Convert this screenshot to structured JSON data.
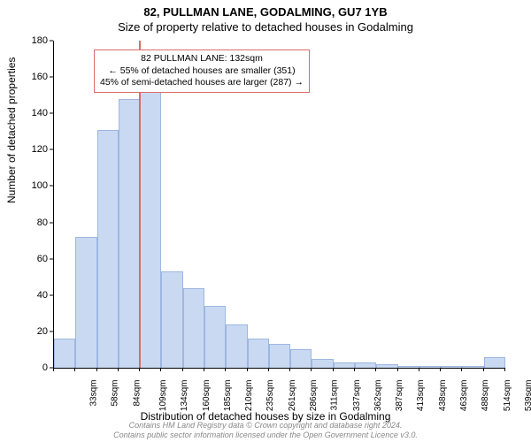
{
  "chart": {
    "type": "histogram",
    "title_main": "82, PULLMAN LANE, GODALMING, GU7 1YB",
    "title_sub": "Size of property relative to detached houses in Godalming",
    "title_fontsize": 13,
    "ylabel": "Number of detached properties",
    "xlabel": "Distribution of detached houses by size in Godalming",
    "label_fontsize": 12,
    "tick_fontsize": 11,
    "background_color": "#ffffff",
    "axis_color": "#000000",
    "bar_fill": "#c9d9f2",
    "bar_border": "#9db7e0",
    "bar_width": 1.0,
    "ylim": [
      0,
      180
    ],
    "ytick_step": 20,
    "yticks": [
      0,
      20,
      40,
      60,
      80,
      100,
      120,
      140,
      160,
      180
    ],
    "x_categories": [
      "33sqm",
      "58sqm",
      "84sqm",
      "109sqm",
      "134sqm",
      "160sqm",
      "185sqm",
      "210sqm",
      "235sqm",
      "261sqm",
      "286sqm",
      "311sqm",
      "337sqm",
      "362sqm",
      "387sqm",
      "413sqm",
      "438sqm",
      "463sqm",
      "488sqm",
      "514sqm",
      "539sqm"
    ],
    "values": [
      16,
      72,
      131,
      148,
      162,
      53,
      44,
      34,
      24,
      16,
      13,
      10,
      5,
      3,
      3,
      2,
      1,
      1,
      1,
      1,
      6
    ],
    "highlight": {
      "after_index": 3,
      "line_color": "#d96c6c",
      "box_border": "#d96c6c",
      "lines": [
        "82 PULLMAN LANE: 132sqm",
        "← 55% of detached houses are smaller (351)",
        "45% of semi-detached houses are larger (287) →"
      ],
      "box_fontsize": 10.5
    }
  },
  "footer": {
    "color": "#888888",
    "line1": "Contains HM Land Registry data © Crown copyright and database right 2024.",
    "line2": "Contains public sector information licensed under the Open Government Licence v3.0."
  }
}
